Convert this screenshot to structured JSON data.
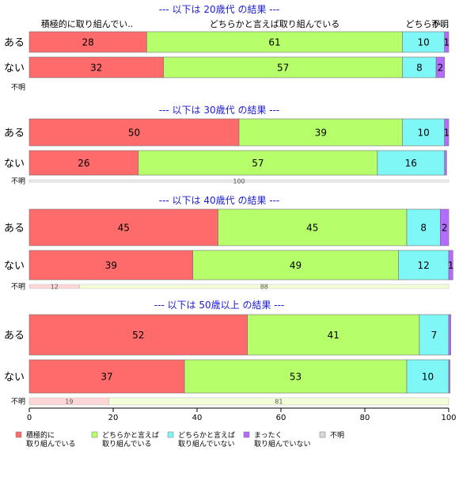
{
  "chart_data": {
    "type": "bar",
    "orientation": "horizontal",
    "stacked": true,
    "xlim": [
      0,
      100
    ],
    "xticks": [
      0,
      20,
      40,
      60,
      80,
      100
    ],
    "colors": [
      "#ff6b6b",
      "#b6ff6b",
      "#7ff7f7",
      "#b56bff",
      "#d9d9d9"
    ],
    "column_headers": [
      "積極的に取り組んでい..",
      "どちらかと言えば取り組んでいる",
      "どちらか…",
      "不明"
    ],
    "legend": [
      {
        "line1": "積極的に",
        "line2": "取り組んでいる"
      },
      {
        "line1": "どちらかと言えば",
        "line2": "取り組んでいる"
      },
      {
        "line1": "どちらかと言えば",
        "line2": "取り組んでいない"
      },
      {
        "line1": "まったく",
        "line2": "取り組んでいない"
      },
      {
        "line1": "不明",
        "line2": ""
      }
    ],
    "sections": [
      {
        "title": "--- 以下は 20歳代 の結果 ---",
        "rows": [
          {
            "label": "ある",
            "values": [
              28,
              61,
              10,
              1
            ],
            "labels": [
              "28",
              "61",
              "10",
              "1"
            ]
          },
          {
            "label": "ない",
            "values": [
              32,
              57,
              8,
              2
            ],
            "labels": [
              "32",
              "57",
              "8",
              "2"
            ]
          },
          {
            "label": "不明",
            "small": true,
            "values": [],
            "labels": []
          }
        ]
      },
      {
        "title": "--- 以下は 30歳代 の結果 ---",
        "rows": [
          {
            "label": "ある",
            "values": [
              50,
              39,
              10,
              1
            ],
            "labels": [
              "50",
              "39",
              "10",
              "1"
            ]
          },
          {
            "label": "ない",
            "values": [
              26,
              57,
              16,
              0.5
            ],
            "labels": [
              "26",
              "57",
              "16",
              ""
            ]
          },
          {
            "label": "不明",
            "small": true,
            "values": [
              0,
              0,
              0,
              0,
              100
            ],
            "labels": [
              "",
              "",
              "",
              "",
              "100"
            ]
          }
        ]
      },
      {
        "title": "--- 以下は 40歳代 の結果 ---",
        "rows": [
          {
            "label": "ある",
            "values": [
              45,
              45,
              8,
              2
            ],
            "labels": [
              "45",
              "45",
              "8",
              "2"
            ]
          },
          {
            "label": "ない",
            "values": [
              39,
              49,
              12,
              1
            ],
            "labels": [
              "39",
              "49",
              "12",
              "1"
            ]
          },
          {
            "label": "不明",
            "small": true,
            "values": [
              12,
              88
            ],
            "labels": [
              "12",
              "88"
            ]
          }
        ]
      },
      {
        "title": "--- 以下は 50歳以上 の結果 ---",
        "rows": [
          {
            "label": "ある",
            "values": [
              52,
              41,
              7,
              0.5
            ],
            "labels": [
              "52",
              "41",
              "7",
              ""
            ]
          },
          {
            "label": "ない",
            "values": [
              37,
              53,
              10,
              0.3
            ],
            "labels": [
              "37",
              "53",
              "10",
              ""
            ]
          },
          {
            "label": "不明",
            "small": true,
            "values": [
              19,
              81
            ],
            "labels": [
              "19",
              "81"
            ]
          }
        ]
      }
    ]
  }
}
